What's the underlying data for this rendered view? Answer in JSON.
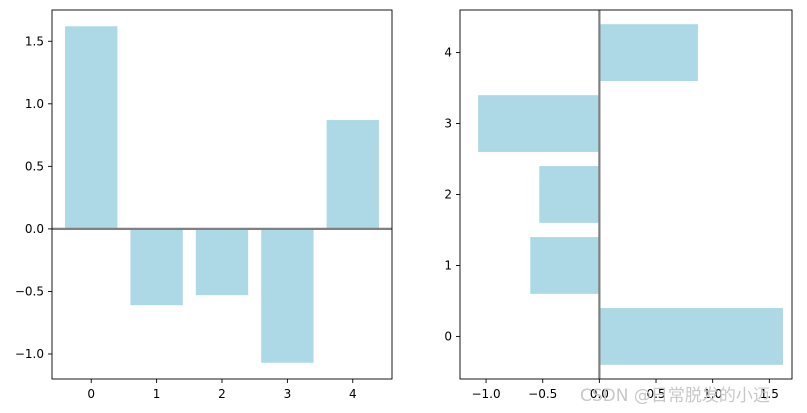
{
  "chart_data": [
    {
      "type": "bar",
      "orientation": "vertical",
      "categories": [
        "0",
        "1",
        "2",
        "3",
        "4"
      ],
      "values": [
        1.62,
        -0.61,
        -0.53,
        -1.07,
        0.87
      ],
      "color": "#add8e6",
      "title": "",
      "xlabel": "",
      "ylabel": "",
      "xlim": [
        -0.6,
        4.6
      ],
      "ylim": [
        -1.2,
        1.75
      ],
      "xticks": [
        "0",
        "1",
        "2",
        "3",
        "4"
      ],
      "yticks": [
        "−1.0",
        "−0.5",
        "0.0",
        "0.5",
        "1.0",
        "1.5"
      ],
      "reference_line": {
        "axis": "y",
        "value": 0,
        "color": "#808080"
      },
      "grid": false
    },
    {
      "type": "bar",
      "orientation": "horizontal",
      "categories": [
        "0",
        "1",
        "2",
        "3",
        "4"
      ],
      "values": [
        1.62,
        -0.61,
        -0.53,
        -1.07,
        0.87
      ],
      "color": "#add8e6",
      "title": "",
      "xlabel": "",
      "ylabel": "",
      "xlim": [
        -1.23,
        1.7
      ],
      "ylim": [
        -0.6,
        4.6
      ],
      "xticks": [
        "−1.0",
        "−0.5",
        "0.0",
        "0.5",
        "1.0",
        "1.5"
      ],
      "yticks": [
        "0",
        "1",
        "2",
        "3",
        "4"
      ],
      "reference_line": {
        "axis": "x",
        "value": 0,
        "color": "#808080"
      },
      "grid": false
    }
  ],
  "watermark": "CSDN @日常脱发的小迈"
}
